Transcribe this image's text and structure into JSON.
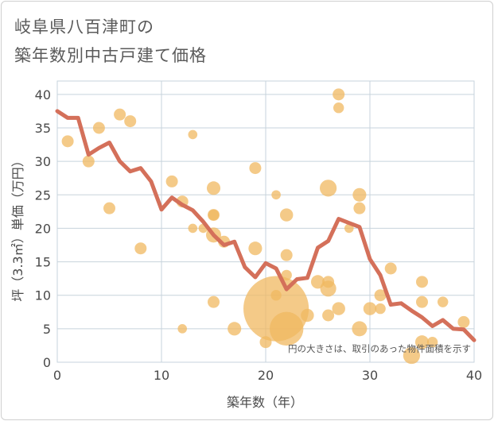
{
  "header": {
    "title_line1": "岐阜県八百津町の",
    "title_line2": "築年数別中古戸建て価格"
  },
  "colors": {
    "bubble": "#f0b860",
    "line": "#d4705a",
    "grid": "#c7d3dc",
    "plot_border": "#c7d3dc"
  },
  "chart_data": {
    "type": "scatter",
    "title": "岐阜県八百津町の築年数別中古戸建て価格",
    "xlabel": "築年数（年）",
    "ylabel": "坪（3.3㎡）単価（万円）",
    "xlim": [
      0,
      40
    ],
    "ylim": [
      0,
      42
    ],
    "x_ticks": [
      0,
      10,
      20,
      30,
      40
    ],
    "y_ticks": [
      0,
      5,
      10,
      15,
      20,
      25,
      30,
      35,
      40
    ],
    "grid": true,
    "note": "円の大きさは、取引のあった物件面積を示す",
    "series": [
      {
        "type": "scatter",
        "points": [
          {
            "x": 1,
            "y": 33,
            "size": 1
          },
          {
            "x": 3,
            "y": 30,
            "size": 1
          },
          {
            "x": 4,
            "y": 35,
            "size": 1
          },
          {
            "x": 5,
            "y": 23,
            "size": 1
          },
          {
            "x": 6,
            "y": 37,
            "size": 1
          },
          {
            "x": 7,
            "y": 36,
            "size": 1
          },
          {
            "x": 8,
            "y": 17,
            "size": 1
          },
          {
            "x": 11,
            "y": 27,
            "size": 1
          },
          {
            "x": 12,
            "y": 24,
            "size": 1
          },
          {
            "x": 12,
            "y": 5,
            "size": 0.6
          },
          {
            "x": 13,
            "y": 34,
            "size": 0.6
          },
          {
            "x": 13,
            "y": 20,
            "size": 0.6
          },
          {
            "x": 14,
            "y": 20,
            "size": 0.6
          },
          {
            "x": 15,
            "y": 26,
            "size": 1.3
          },
          {
            "x": 15,
            "y": 22,
            "size": 1
          },
          {
            "x": 15,
            "y": 22,
            "size": 0.8
          },
          {
            "x": 15,
            "y": 19,
            "size": 1.6
          },
          {
            "x": 15,
            "y": 9,
            "size": 1
          },
          {
            "x": 16,
            "y": 18,
            "size": 1
          },
          {
            "x": 17,
            "y": 5,
            "size": 1.3
          },
          {
            "x": 19,
            "y": 29,
            "size": 1
          },
          {
            "x": 19,
            "y": 17,
            "size": 1.3
          },
          {
            "x": 20,
            "y": 3,
            "size": 1
          },
          {
            "x": 21,
            "y": 25,
            "size": 0.6
          },
          {
            "x": 21,
            "y": 10,
            "size": 0.8
          },
          {
            "x": 21,
            "y": 8,
            "size": 30
          },
          {
            "x": 22,
            "y": 22,
            "size": 1.2
          },
          {
            "x": 22,
            "y": 16,
            "size": 1
          },
          {
            "x": 22,
            "y": 13,
            "size": 0.8
          },
          {
            "x": 22,
            "y": 5,
            "size": 8
          },
          {
            "x": 24,
            "y": 7,
            "size": 1.2
          },
          {
            "x": 25,
            "y": 12,
            "size": 1.3
          },
          {
            "x": 26,
            "y": 26,
            "size": 2
          },
          {
            "x": 26,
            "y": 12,
            "size": 1
          },
          {
            "x": 26,
            "y": 11,
            "size": 1.8
          },
          {
            "x": 26,
            "y": 7,
            "size": 1
          },
          {
            "x": 27,
            "y": 40,
            "size": 1
          },
          {
            "x": 27,
            "y": 38,
            "size": 0.8
          },
          {
            "x": 27,
            "y": 8,
            "size": 1.2
          },
          {
            "x": 28,
            "y": 20,
            "size": 0.6
          },
          {
            "x": 29,
            "y": 25,
            "size": 1.3
          },
          {
            "x": 29,
            "y": 23,
            "size": 1
          },
          {
            "x": 29,
            "y": 5,
            "size": 1.6
          },
          {
            "x": 30,
            "y": 8,
            "size": 1.2
          },
          {
            "x": 31,
            "y": 10,
            "size": 1
          },
          {
            "x": 31,
            "y": 8,
            "size": 0.8
          },
          {
            "x": 32,
            "y": 14,
            "size": 1
          },
          {
            "x": 34,
            "y": 1,
            "size": 2
          },
          {
            "x": 35,
            "y": 12,
            "size": 1
          },
          {
            "x": 35,
            "y": 9,
            "size": 1
          },
          {
            "x": 35,
            "y": 3,
            "size": 1.3
          },
          {
            "x": 36,
            "y": 3,
            "size": 0.8
          },
          {
            "x": 37,
            "y": 9,
            "size": 0.8
          },
          {
            "x": 39,
            "y": 6,
            "size": 1
          }
        ]
      },
      {
        "type": "line",
        "x": [
          0,
          1,
          2,
          3,
          4,
          5,
          6,
          7,
          8,
          9,
          10,
          11,
          12,
          13,
          14,
          15,
          16,
          17,
          18,
          19,
          20,
          21,
          22,
          23,
          24,
          25,
          26,
          27,
          28,
          29,
          30,
          31,
          32,
          33,
          34,
          35,
          36,
          37,
          38,
          39,
          40
        ],
        "values": [
          37.5,
          36.5,
          36.5,
          31.0,
          32.0,
          32.8,
          30.0,
          28.5,
          29.0,
          27.0,
          22.8,
          24.6,
          23.5,
          22.7,
          21.0,
          19.0,
          17.5,
          18.0,
          14.2,
          12.7,
          14.8,
          14.0,
          10.9,
          12.4,
          12.6,
          17.1,
          18.1,
          21.4,
          20.8,
          20.2,
          15.4,
          13.0,
          8.6,
          8.8,
          7.7,
          6.7,
          5.4,
          6.3,
          5.0,
          4.9,
          3.3
        ]
      }
    ]
  }
}
